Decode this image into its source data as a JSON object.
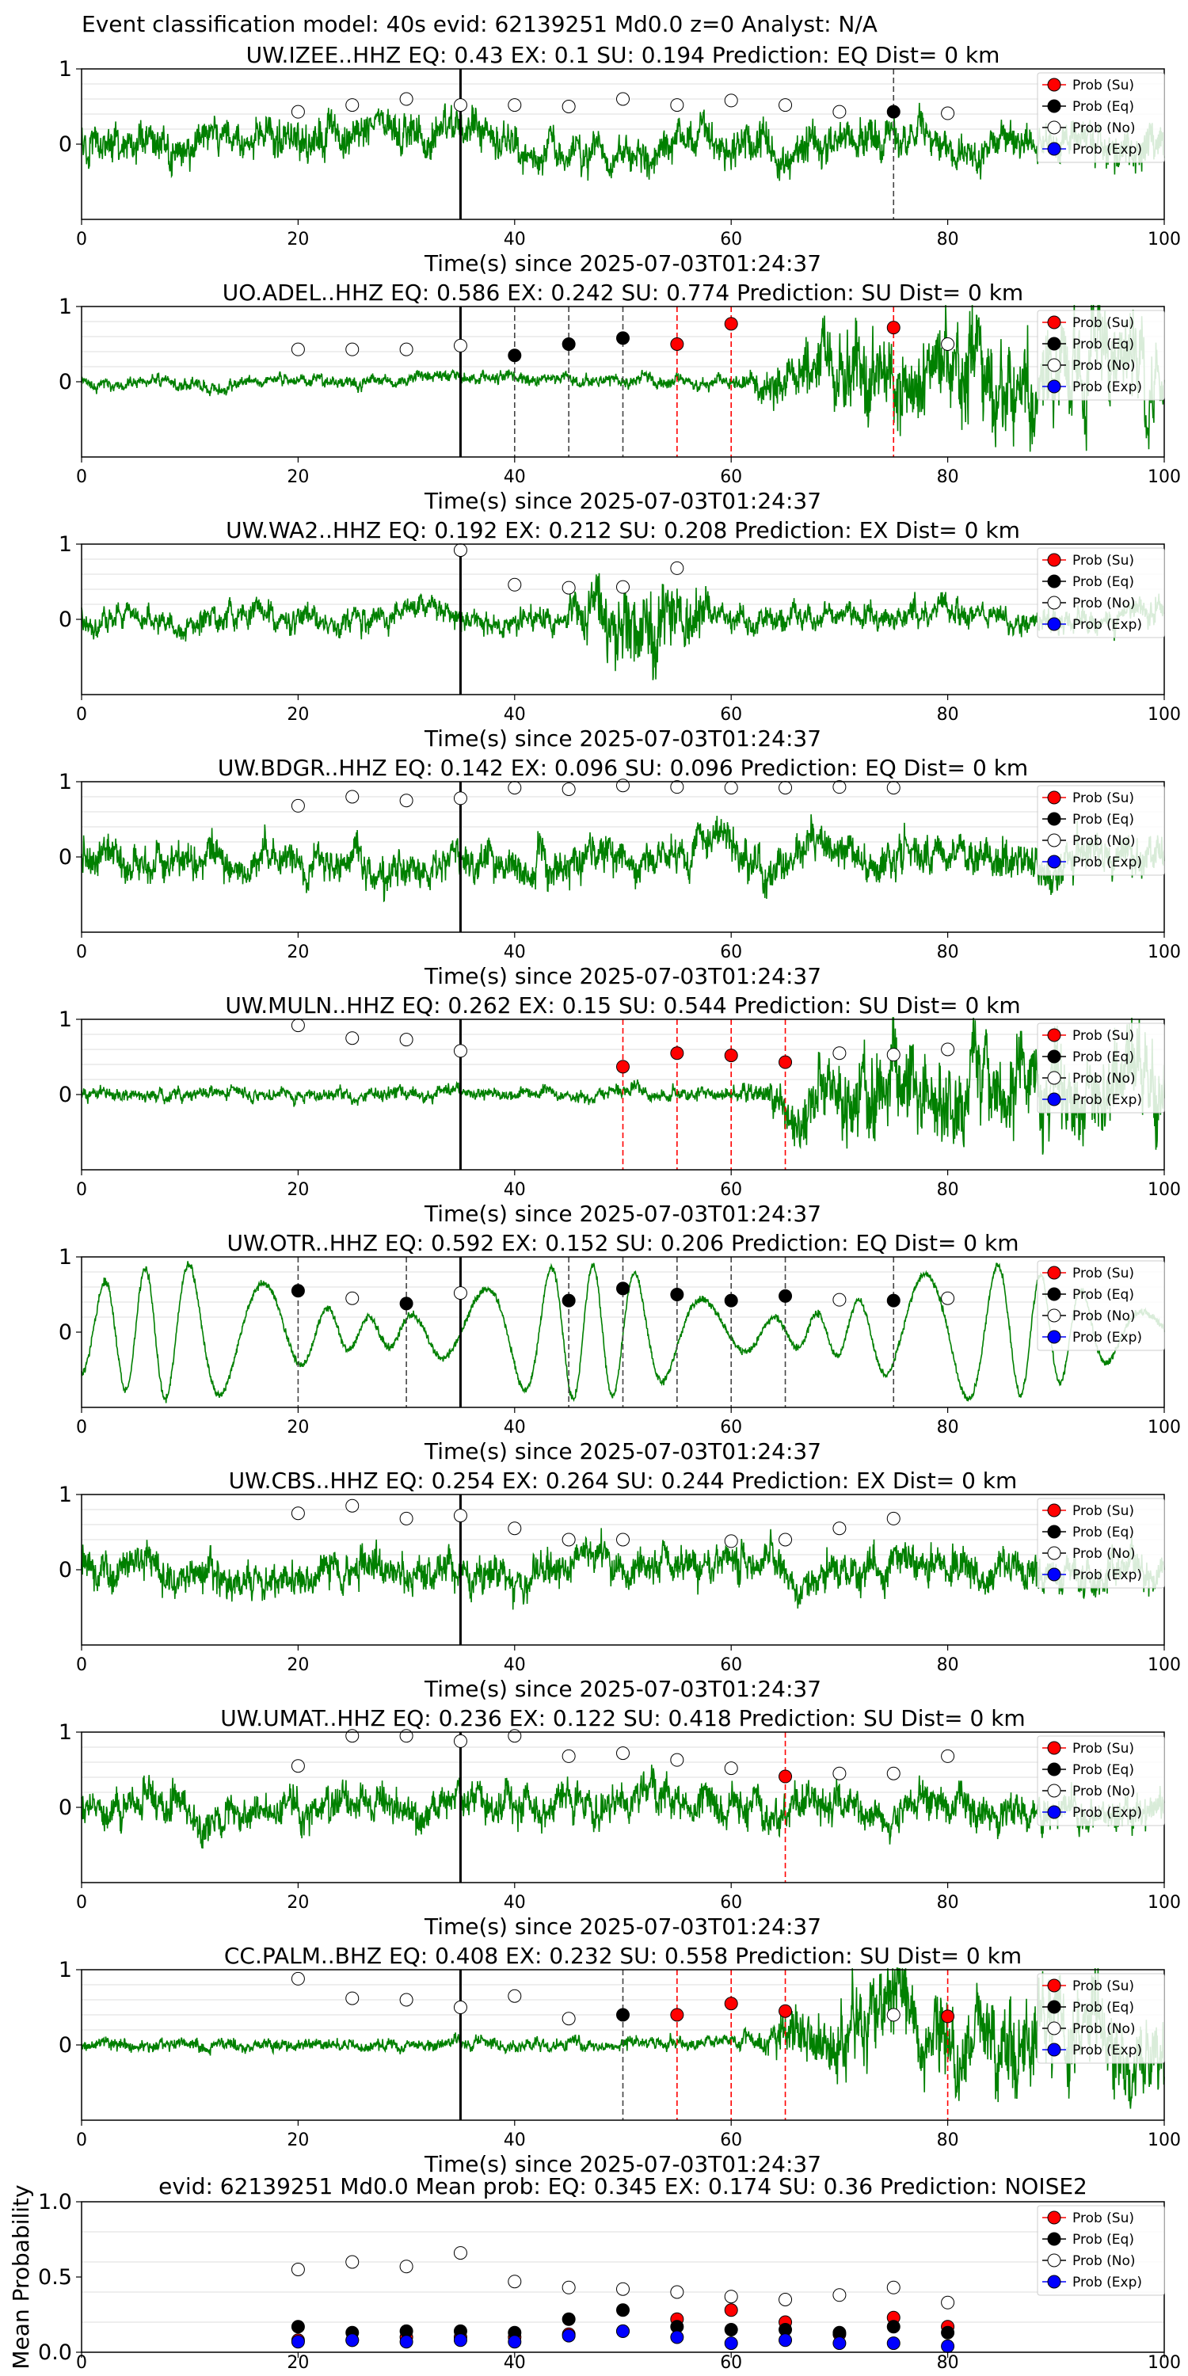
{
  "header": {
    "title": "Event classification model: 40s evid: 62139251 Md0.0 z=0 Analyst: N/A"
  },
  "legend": {
    "labels": [
      "Prob (Su)",
      "Prob (Eq)",
      "Prob (No)",
      "Prob (Exp)"
    ]
  },
  "colors": {
    "trace": "#008000",
    "su": "#ff0000",
    "eq": "#000000",
    "no": "#ffffff",
    "exp": "#0000ff",
    "grid": "#dddddd"
  },
  "chart_data": [
    {
      "type": "line",
      "station": "UW.IZEE..HHZ",
      "title": "UW.IZEE..HHZ   EQ: 0.43  EX: 0.1  SU: 0.194   Prediction: EQ    Dist= 0 km",
      "xlabel": "Time(s) since 2025-07-03T01:24:37",
      "xlim": [
        0,
        100
      ],
      "xticks": [
        "0",
        "20",
        "40",
        "60",
        "80",
        "100"
      ],
      "yticks": [
        "1",
        "0"
      ],
      "amplitude_style": "noisy",
      "pick_time": 35,
      "windows": [
        20,
        25,
        30,
        35,
        40,
        45,
        50,
        55,
        60,
        65,
        70,
        75,
        80
      ],
      "prob_no": [
        0.43,
        0.52,
        0.6,
        0.52,
        0.52,
        0.5,
        0.6,
        0.52,
        0.58,
        0.52,
        0.43,
        null,
        0.41
      ],
      "detections": [
        {
          "t": 75,
          "p": 0.43,
          "class": "eq"
        }
      ]
    },
    {
      "type": "line",
      "station": "UO.ADEL..HHZ",
      "title": "UO.ADEL..HHZ   EQ: 0.586  EX: 0.242  SU: 0.774   Prediction: SU    Dist= 0 km",
      "xlabel": "Time(s) since 2025-07-03T01:24:37",
      "xlim": [
        0,
        100
      ],
      "xticks": [
        "0",
        "20",
        "40",
        "60",
        "80",
        "100"
      ],
      "yticks": [
        "1",
        "0"
      ],
      "amplitude_style": "growing",
      "pick_time": 35,
      "windows": [
        20,
        25,
        30,
        35,
        40,
        45,
        50,
        55,
        60,
        65,
        70,
        75,
        80
      ],
      "prob_no": [
        0.43,
        0.43,
        0.43,
        0.48,
        null,
        null,
        null,
        null,
        null,
        null,
        null,
        null,
        0.5
      ],
      "detections": [
        {
          "t": 40,
          "p": 0.35,
          "class": "eq"
        },
        {
          "t": 45,
          "p": 0.5,
          "class": "eq"
        },
        {
          "t": 50,
          "p": 0.58,
          "class": "eq"
        },
        {
          "t": 55,
          "p": 0.5,
          "class": "su"
        },
        {
          "t": 60,
          "p": 0.77,
          "class": "su"
        },
        {
          "t": 75,
          "p": 0.72,
          "class": "su"
        }
      ]
    },
    {
      "type": "line",
      "station": "UW.WA2..HHZ",
      "title": "UW.WA2..HHZ   EQ: 0.192  EX: 0.212  SU: 0.208   Prediction: EX    Dist= 0 km",
      "xlabel": "Time(s) since 2025-07-03T01:24:37",
      "xlim": [
        0,
        100
      ],
      "xticks": [
        "0",
        "20",
        "40",
        "60",
        "80",
        "100"
      ],
      "yticks": [
        "1",
        "0"
      ],
      "amplitude_style": "burst",
      "pick_time": 35,
      "windows": [
        35,
        40,
        45,
        50,
        55
      ],
      "prob_no": [
        0.92,
        0.46,
        0.42,
        0.43,
        0.68
      ],
      "detections": []
    },
    {
      "type": "line",
      "station": "UW.BDGR..HHZ",
      "title": "UW.BDGR..HHZ   EQ: 0.142  EX: 0.096  SU: 0.096   Prediction: EQ    Dist= 0 km",
      "xlabel": "Time(s) since 2025-07-03T01:24:37",
      "xlim": [
        0,
        100
      ],
      "xticks": [
        "0",
        "20",
        "40",
        "60",
        "80",
        "100"
      ],
      "yticks": [
        "1",
        "0"
      ],
      "amplitude_style": "noisy",
      "pick_time": 35,
      "windows": [
        20,
        25,
        30,
        35,
        40,
        45,
        50,
        55,
        60,
        65,
        70,
        75
      ],
      "prob_no": [
        0.68,
        0.8,
        0.75,
        0.78,
        0.92,
        0.9,
        0.95,
        0.93,
        0.92,
        0.92,
        0.93,
        0.92
      ],
      "detections": []
    },
    {
      "type": "line",
      "station": "UW.MULN..HHZ",
      "title": "UW.MULN..HHZ   EQ: 0.262  EX: 0.15  SU: 0.544   Prediction: SU    Dist= 0 km",
      "xlabel": "Time(s) since 2025-07-03T01:24:37",
      "xlim": [
        0,
        100
      ],
      "xticks": [
        "0",
        "20",
        "40",
        "60",
        "80",
        "100"
      ],
      "yticks": [
        "1",
        "0"
      ],
      "amplitude_style": "growing",
      "pick_time": 35,
      "windows": [
        20,
        25,
        30,
        35,
        70,
        75,
        80
      ],
      "prob_no": [
        0.92,
        0.75,
        0.73,
        0.58,
        0.55,
        0.53,
        0.6
      ],
      "detections": [
        {
          "t": 50,
          "p": 0.37,
          "class": "su"
        },
        {
          "t": 55,
          "p": 0.55,
          "class": "su"
        },
        {
          "t": 60,
          "p": 0.52,
          "class": "su"
        },
        {
          "t": 65,
          "p": 0.43,
          "class": "su"
        }
      ]
    },
    {
      "type": "line",
      "station": "UW.OTR..HHZ",
      "title": "UW.OTR..HHZ   EQ: 0.592  EX: 0.152  SU: 0.206   Prediction: EQ    Dist= 0 km",
      "xlabel": "Time(s) since 2025-07-03T01:24:37",
      "xlim": [
        0,
        100
      ],
      "xticks": [
        "0",
        "20",
        "40",
        "60",
        "80",
        "100"
      ],
      "yticks": [
        "1",
        "0"
      ],
      "amplitude_style": "smooth",
      "pick_time": 35,
      "windows": [
        25,
        35,
        70,
        80
      ],
      "prob_no": [
        0.45,
        0.52,
        0.43,
        0.45
      ],
      "detections": [
        {
          "t": 20,
          "p": 0.55,
          "class": "eq"
        },
        {
          "t": 30,
          "p": 0.38,
          "class": "eq"
        },
        {
          "t": 45,
          "p": 0.42,
          "class": "eq"
        },
        {
          "t": 50,
          "p": 0.58,
          "class": "eq"
        },
        {
          "t": 55,
          "p": 0.5,
          "class": "eq"
        },
        {
          "t": 60,
          "p": 0.42,
          "class": "eq"
        },
        {
          "t": 65,
          "p": 0.48,
          "class": "eq"
        },
        {
          "t": 75,
          "p": 0.42,
          "class": "eq"
        }
      ]
    },
    {
      "type": "line",
      "station": "UW.CBS..HHZ",
      "title": "UW.CBS..HHZ   EQ: 0.254  EX: 0.264  SU: 0.244   Prediction: EX    Dist= 0 km",
      "xlabel": "Time(s) since 2025-07-03T01:24:37",
      "xlim": [
        0,
        100
      ],
      "xticks": [
        "0",
        "20",
        "40",
        "60",
        "80",
        "100"
      ],
      "yticks": [
        "1",
        "0"
      ],
      "amplitude_style": "noisy",
      "pick_time": 35,
      "windows": [
        20,
        25,
        30,
        35,
        40,
        45,
        50,
        60,
        65,
        70,
        75
      ],
      "prob_no": [
        0.75,
        0.85,
        0.68,
        0.72,
        0.55,
        0.4,
        0.4,
        0.38,
        0.4,
        0.55,
        0.68
      ],
      "detections": []
    },
    {
      "type": "line",
      "station": "UW.UMAT..HHZ",
      "title": "UW.UMAT..HHZ   EQ: 0.236  EX: 0.122  SU: 0.418   Prediction: SU    Dist= 0 km",
      "xlabel": "Time(s) since 2025-07-03T01:24:37",
      "xlim": [
        0,
        100
      ],
      "xticks": [
        "0",
        "20",
        "40",
        "60",
        "80",
        "100"
      ],
      "yticks": [
        "1",
        "0"
      ],
      "amplitude_style": "noisy",
      "pick_time": 35,
      "windows": [
        20,
        25,
        30,
        35,
        40,
        45,
        50,
        55,
        60,
        70,
        75,
        80
      ],
      "prob_no": [
        0.55,
        0.95,
        0.95,
        0.88,
        0.95,
        0.68,
        0.72,
        0.63,
        0.52,
        0.45,
        0.45,
        0.68
      ],
      "detections": [
        {
          "t": 65,
          "p": 0.41,
          "class": "su"
        }
      ]
    },
    {
      "type": "line",
      "station": "CC.PALM..BHZ",
      "title": "CC.PALM..BHZ   EQ: 0.408  EX: 0.232  SU: 0.558   Prediction: SU    Dist= 0 km",
      "xlabel": "Time(s) since 2025-07-03T01:24:37",
      "xlim": [
        0,
        100
      ],
      "xticks": [
        "0",
        "20",
        "40",
        "60",
        "80",
        "100"
      ],
      "yticks": [
        "1",
        "0"
      ],
      "amplitude_style": "growing",
      "pick_time": 35,
      "windows": [
        20,
        25,
        30,
        35,
        40,
        45,
        75
      ],
      "prob_no": [
        0.88,
        0.62,
        0.6,
        0.5,
        0.65,
        0.35,
        0.4
      ],
      "detections": [
        {
          "t": 50,
          "p": 0.4,
          "class": "eq"
        },
        {
          "t": 55,
          "p": 0.4,
          "class": "su"
        },
        {
          "t": 60,
          "p": 0.55,
          "class": "su"
        },
        {
          "t": 65,
          "p": 0.45,
          "class": "su"
        },
        {
          "t": 80,
          "p": 0.38,
          "class": "su"
        }
      ]
    },
    {
      "type": "scatter",
      "title": "evid: 62139251  Md0.0   Mean prob:    EQ: 0.345  EX: 0.174  SU: 0.36   Prediction: NOISE2",
      "ylabel": "Mean Probability",
      "xlim": [
        0,
        100
      ],
      "ylim": [
        0,
        1
      ],
      "xticks": [
        "0",
        "20",
        "40",
        "60",
        "80",
        "100"
      ],
      "yticks": [
        "1.0",
        "0.5",
        "0.0"
      ],
      "x": [
        20,
        25,
        30,
        35,
        40,
        45,
        50,
        55,
        60,
        65,
        70,
        75,
        80
      ],
      "series": [
        {
          "name": "Prob (Su)",
          "class": "su",
          "values": [
            0.08,
            0.08,
            0.1,
            0.1,
            0.1,
            0.12,
            0.14,
            0.22,
            0.28,
            0.2,
            0.12,
            0.23,
            0.17
          ]
        },
        {
          "name": "Prob (Eq)",
          "class": "eq",
          "values": [
            0.17,
            0.13,
            0.14,
            0.14,
            0.13,
            0.22,
            0.28,
            0.17,
            0.15,
            0.15,
            0.13,
            0.17,
            0.13
          ]
        },
        {
          "name": "Prob (No)",
          "class": "no",
          "values": [
            0.55,
            0.6,
            0.57,
            0.66,
            0.47,
            0.43,
            0.42,
            0.4,
            0.37,
            0.35,
            0.38,
            0.43,
            0.33
          ]
        },
        {
          "name": "Prob (Exp)",
          "class": "exp",
          "values": [
            0.07,
            0.08,
            0.07,
            0.08,
            0.07,
            0.11,
            0.14,
            0.1,
            0.06,
            0.08,
            0.06,
            0.06,
            0.04
          ]
        }
      ]
    }
  ]
}
